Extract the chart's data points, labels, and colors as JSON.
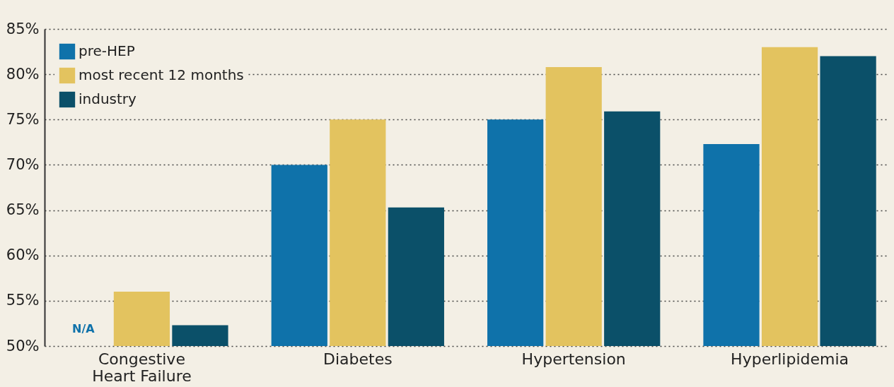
{
  "chart_data": {
    "type": "bar",
    "categories": [
      "Congestive Heart Failure",
      "Diabetes",
      "Hypertension",
      "Hyperlipidemia"
    ],
    "series": [
      {
        "name": "pre-HEP",
        "color": "#0f72aa",
        "values": [
          null,
          70,
          75,
          72.3
        ]
      },
      {
        "name": "most recent 12 months",
        "color": "#e3c35f",
        "values": [
          56,
          75,
          80.8,
          83
        ]
      },
      {
        "name": "industry",
        "color": "#0b5069",
        "values": [
          52.3,
          65.3,
          75.9,
          82
        ]
      }
    ],
    "ylim": [
      50,
      85
    ],
    "yticks": [
      {
        "value": 50,
        "label": "50%"
      },
      {
        "value": 55,
        "label": "55%"
      },
      {
        "value": 60,
        "label": "60%"
      },
      {
        "value": 65,
        "label": "65%"
      },
      {
        "value": 70,
        "label": "70%"
      },
      {
        "value": 75,
        "label": "75%"
      },
      {
        "value": 80,
        "label": "80%"
      },
      {
        "value": 85,
        "label": "85%"
      }
    ],
    "grid": "y",
    "legend": "top left",
    "annotations": [
      "N/A"
    ]
  }
}
